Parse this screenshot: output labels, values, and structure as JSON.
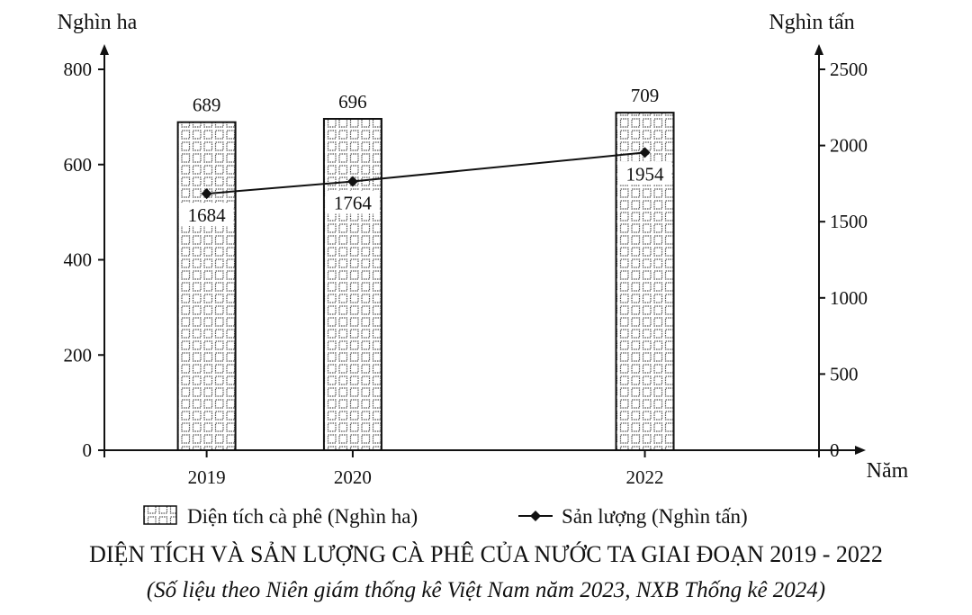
{
  "chart_data": {
    "type": "bar",
    "title": "DIỆN TÍCH VÀ SẢN LƯỢNG CÀ PHÊ CỦA NƯỚC TA GIAI ĐOẠN 2019 - 2022",
    "subtitle": "(Số liệu theo Niên giám thống kê Việt Nam năm 2023, NXB Thống kê 2024)",
    "xlabel": "Năm",
    "ylabel_left": "Nghìn ha",
    "ylabel_right": "Nghìn tấn",
    "x": [
      2019,
      2020,
      2022
    ],
    "x_labels": [
      "2019",
      "2020",
      "2022"
    ],
    "xlim": [
      2018.3,
      2023.5
    ],
    "y_left_lim": [
      0,
      800
    ],
    "y_left_ticks": [
      0,
      200,
      400,
      600,
      800
    ],
    "y_right_lim": [
      0,
      2500
    ],
    "y_right_ticks": [
      0,
      500,
      1000,
      1500,
      2000,
      2500
    ],
    "series": [
      {
        "name": "Diện tích cà phê (Nghìn ha)",
        "type": "bar",
        "axis": "left",
        "values": [
          689,
          696,
          709
        ],
        "labels": [
          "689",
          "696",
          "709"
        ]
      },
      {
        "name": "Sản lượng (Nghìn tấn)",
        "type": "line",
        "axis": "right",
        "values": [
          1684,
          1764,
          1954
        ],
        "labels": [
          "1684",
          "1764",
          "1954"
        ]
      }
    ],
    "grid": false,
    "legend_position": "bottom",
    "bar_pattern": "grid",
    "colors": {
      "ink": "#111111",
      "background": "#ffffff"
    }
  }
}
